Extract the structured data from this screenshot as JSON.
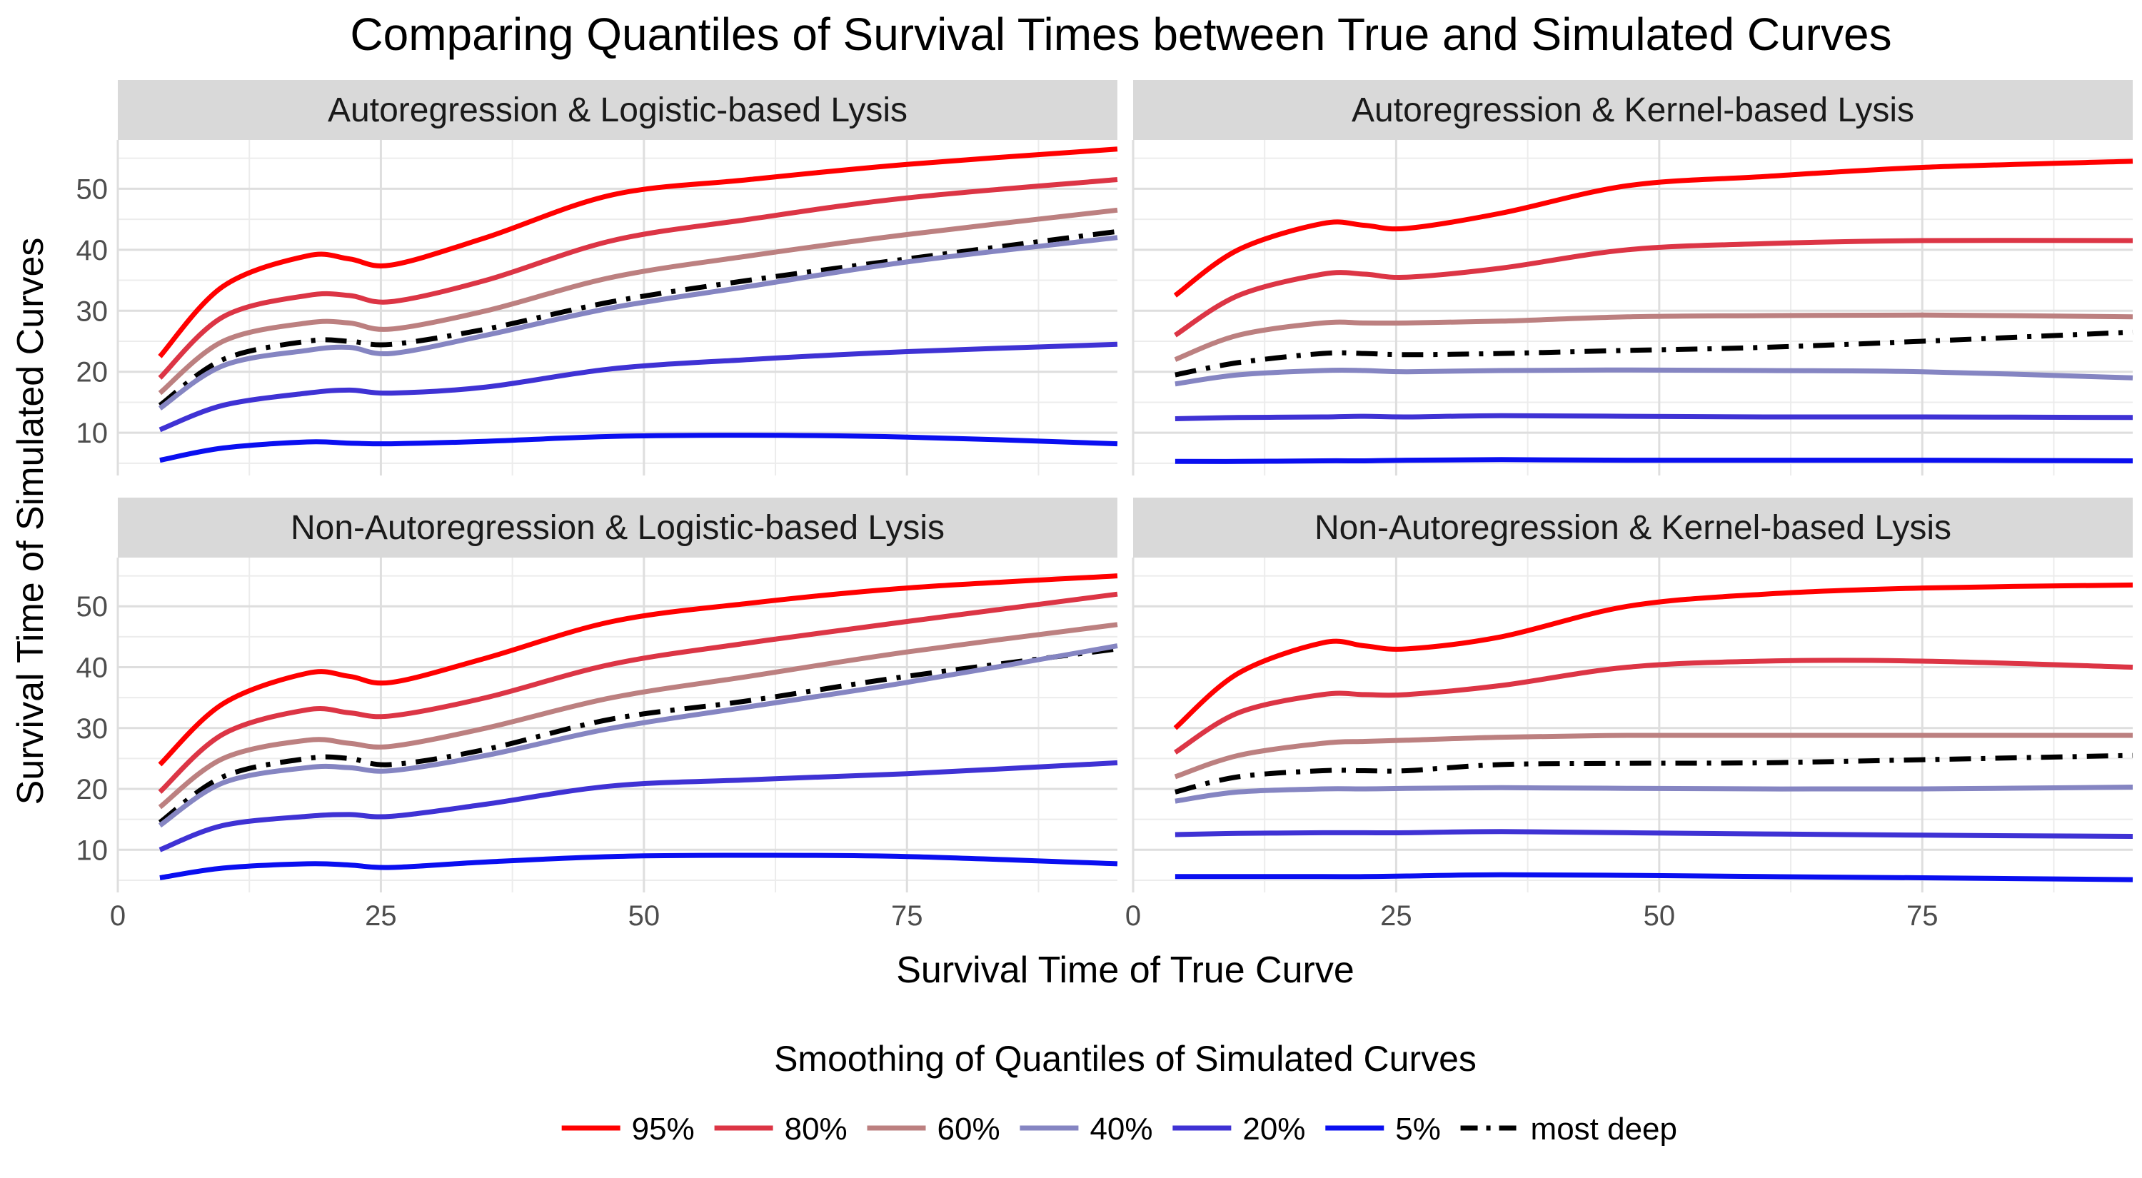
{
  "chart_data": {
    "type": "line",
    "title": "Comparing Quantiles of Survival Times between True and Simulated Curves",
    "xlabel": "Survival Time of True Curve",
    "ylabel": "Survival Time of Simulated Curves",
    "xlim": [
      0,
      95
    ],
    "ylim": [
      3,
      58
    ],
    "x_ticks": [
      0,
      25,
      50,
      75
    ],
    "y_ticks": [
      10,
      20,
      30,
      40,
      50
    ],
    "grid": true,
    "legend": {
      "title": "Smoothing of Quantiles of Simulated Curves",
      "position": "bottom",
      "entries": [
        "95%",
        "80%",
        "60%",
        "40%",
        "20%",
        "5%",
        "most deep"
      ]
    },
    "series_styles": [
      {
        "name": "95%",
        "color": "#ff0000",
        "dash": "solid"
      },
      {
        "name": "80%",
        "color": "#dc3545",
        "dash": "solid"
      },
      {
        "name": "60%",
        "color": "#bc8080",
        "dash": "solid"
      },
      {
        "name": "40%",
        "color": "#8585c2",
        "dash": "solid"
      },
      {
        "name": "20%",
        "color": "#3f32d4",
        "dash": "solid"
      },
      {
        "name": "5%",
        "color": "#0a0ff0",
        "dash": "solid"
      },
      {
        "name": "most deep",
        "color": "#000000",
        "dash": "dashdot"
      }
    ],
    "panels": [
      {
        "title": "Autoregression & Logistic-based Lysis",
        "x": [
          4,
          10,
          18,
          22,
          26,
          35,
          47,
          60,
          75,
          95
        ],
        "series": [
          {
            "name": "95%",
            "values": [
              22.5,
              34,
              39,
              38.5,
              37.5,
              42,
              49,
              51.5,
              54,
              56.5
            ]
          },
          {
            "name": "80%",
            "values": [
              19,
              29,
              32.5,
              32.5,
              31.5,
              35,
              41.5,
              45,
              48.5,
              51.5
            ]
          },
          {
            "name": "60%",
            "values": [
              16.5,
              25,
              28,
              28,
              27,
              30,
              35.5,
              39,
              42.5,
              46.5
            ]
          },
          {
            "name": "most deep",
            "values": [
              14.5,
              22,
              25,
              25,
              24.5,
              27,
              31.5,
              35,
              38.5,
              43
            ]
          },
          {
            "name": "40%",
            "values": [
              14,
              21,
              23.5,
              24,
              23,
              26,
              30.5,
              34,
              38,
              42
            ]
          },
          {
            "name": "20%",
            "values": [
              10.5,
              14.5,
              16.5,
              17,
              16.5,
              17.5,
              20.5,
              22,
              23.3,
              24.5
            ]
          },
          {
            "name": "5%",
            "values": [
              5.5,
              7.5,
              8.5,
              8.3,
              8.2,
              8.6,
              9.4,
              9.6,
              9.3,
              8.2
            ]
          }
        ]
      },
      {
        "title": "Autoregression & Kernel-based Lysis",
        "x": [
          4,
          10,
          18,
          22,
          26,
          35,
          47,
          60,
          75,
          95
        ],
        "series": [
          {
            "name": "95%",
            "values": [
              32.5,
              40,
              44.3,
              44,
              43.5,
              46,
              50.5,
              52,
              53.5,
              54.5
            ]
          },
          {
            "name": "80%",
            "values": [
              26,
              32.5,
              36,
              36,
              35.5,
              37,
              40,
              41,
              41.5,
              41.5
            ]
          },
          {
            "name": "60%",
            "values": [
              22,
              26,
              28,
              28,
              28,
              28.3,
              29,
              29.2,
              29.3,
              29
            ]
          },
          {
            "name": "most deep",
            "values": [
              19.5,
              21.5,
              23,
              23,
              22.8,
              23,
              23.5,
              24,
              25,
              26.5
            ]
          },
          {
            "name": "40%",
            "values": [
              18,
              19.5,
              20.2,
              20.2,
              20,
              20.2,
              20.3,
              20.2,
              20,
              19
            ]
          },
          {
            "name": "20%",
            "values": [
              12.3,
              12.5,
              12.6,
              12.7,
              12.6,
              12.8,
              12.7,
              12.6,
              12.6,
              12.5
            ]
          },
          {
            "name": "5%",
            "values": [
              5.3,
              5.3,
              5.4,
              5.4,
              5.5,
              5.6,
              5.5,
              5.5,
              5.5,
              5.4
            ]
          }
        ]
      },
      {
        "title": "Non-Autoregression & Logistic-based Lysis",
        "x": [
          4,
          10,
          18,
          22,
          26,
          35,
          47,
          60,
          75,
          95
        ],
        "series": [
          {
            "name": "95%",
            "values": [
              24,
              34,
              39,
              38.5,
              37.5,
              41.5,
              47.5,
              50.5,
              53,
              55
            ]
          },
          {
            "name": "80%",
            "values": [
              19.5,
              29,
              33,
              32.5,
              32,
              35,
              40.5,
              44,
              47.5,
              52
            ]
          },
          {
            "name": "60%",
            "values": [
              17,
              25,
              28,
              27.5,
              27,
              30,
              35,
              38.5,
              42.5,
              47
            ]
          },
          {
            "name": "most deep",
            "values": [
              14.5,
              22,
              25,
              25,
              24,
              26.5,
              31.5,
              34.5,
              38.5,
              43
            ]
          },
          {
            "name": "40%",
            "values": [
              14,
              21,
              23.5,
              23.5,
              23,
              25.5,
              30,
              33.5,
              37.5,
              43.5
            ]
          },
          {
            "name": "20%",
            "values": [
              10,
              14,
              15.5,
              15.8,
              15.5,
              17.5,
              20.5,
              21.5,
              22.5,
              24.3
            ]
          },
          {
            "name": "5%",
            "values": [
              5.4,
              7,
              7.7,
              7.5,
              7.1,
              8,
              8.9,
              9.1,
              8.9,
              7.7
            ]
          }
        ]
      },
      {
        "title": "Non-Autoregression & Kernel-based Lysis",
        "x": [
          4,
          10,
          18,
          22,
          26,
          35,
          47,
          60,
          75,
          95
        ],
        "series": [
          {
            "name": "95%",
            "values": [
              30,
              39,
              44,
              43.5,
              43,
              45,
              50,
              52,
              53,
              53.5
            ]
          },
          {
            "name": "80%",
            "values": [
              26,
              32.5,
              35.5,
              35.5,
              35.5,
              37,
              40,
              41,
              41,
              40
            ]
          },
          {
            "name": "60%",
            "values": [
              22,
              25.5,
              27.5,
              27.8,
              28,
              28.5,
              28.8,
              28.8,
              28.8,
              28.8
            ]
          },
          {
            "name": "most deep",
            "values": [
              19.5,
              22,
              23,
              23,
              23,
              24,
              24.2,
              24.3,
              24.8,
              25.5
            ]
          },
          {
            "name": "40%",
            "values": [
              18,
              19.5,
              20,
              20,
              20.1,
              20.2,
              20.1,
              20,
              20,
              20.3
            ]
          },
          {
            "name": "20%",
            "values": [
              12.5,
              12.7,
              12.8,
              12.8,
              12.8,
              13,
              12.8,
              12.6,
              12.4,
              12.2
            ]
          },
          {
            "name": "5%",
            "values": [
              5.6,
              5.6,
              5.6,
              5.6,
              5.7,
              5.9,
              5.8,
              5.6,
              5.4,
              5.1
            ]
          }
        ]
      }
    ]
  }
}
